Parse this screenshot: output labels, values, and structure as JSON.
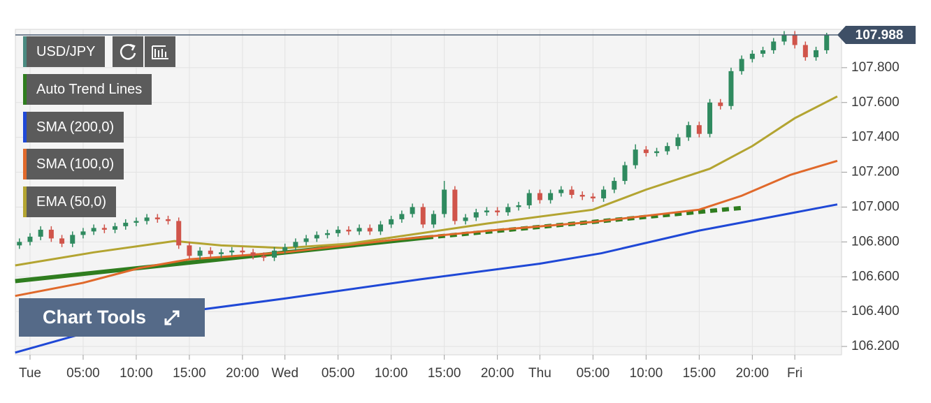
{
  "chart_data": {
    "type": "candlestick",
    "symbol": "USD/JPY",
    "up_color": "#2f8a5f",
    "down_color": "#d0544a",
    "x": [
      -1,
      0,
      1,
      2,
      3,
      4,
      5,
      6,
      7,
      8,
      9,
      10,
      11,
      12,
      13,
      14,
      15,
      16,
      17,
      18,
      19,
      20,
      21,
      22,
      23,
      24,
      25,
      26,
      27,
      28,
      29,
      30,
      31,
      32,
      33,
      34,
      35,
      36,
      37,
      38,
      39,
      40,
      41,
      42,
      43,
      44,
      45,
      46,
      47,
      48,
      49,
      50,
      51,
      52,
      53,
      54,
      55,
      56,
      57,
      58,
      59,
      60,
      61,
      62,
      63,
      64,
      65,
      66,
      67,
      68,
      69,
      70,
      71,
      72,
      73,
      74,
      75
    ],
    "open": [
      106.78,
      106.8,
      106.83,
      106.87,
      106.82,
      106.79,
      106.84,
      106.86,
      106.88,
      106.87,
      106.89,
      106.91,
      106.92,
      106.94,
      106.93,
      106.92,
      106.78,
      106.72,
      106.75,
      106.73,
      106.74,
      106.75,
      106.74,
      106.72,
      106.71,
      106.75,
      106.77,
      106.8,
      106.82,
      106.84,
      106.85,
      106.87,
      106.86,
      106.88,
      106.86,
      106.9,
      106.93,
      106.96,
      107.0,
      106.9,
      106.96,
      107.1,
      106.92,
      106.94,
      106.97,
      106.98,
      106.97,
      107.0,
      107.01,
      107.08,
      107.04,
      107.08,
      107.1,
      107.07,
      107.06,
      107.05,
      107.1,
      107.15,
      107.24,
      107.33,
      107.31,
      107.32,
      107.35,
      107.4,
      107.47,
      107.42,
      107.6,
      107.58,
      107.78,
      107.85,
      107.88,
      107.9,
      107.95,
      107.99,
      107.93,
      107.86,
      107.9
    ],
    "high": [
      106.82,
      106.85,
      106.89,
      106.89,
      106.84,
      106.86,
      106.88,
      106.9,
      106.9,
      106.91,
      106.93,
      106.94,
      106.96,
      106.96,
      106.95,
      106.94,
      106.8,
      106.77,
      106.77,
      106.76,
      106.77,
      106.77,
      106.76,
      106.74,
      106.77,
      106.79,
      106.82,
      106.84,
      106.86,
      106.87,
      106.89,
      106.89,
      106.9,
      106.9,
      106.92,
      106.95,
      106.98,
      107.02,
      107.02,
      106.98,
      107.15,
      107.12,
      106.96,
      106.99,
      107.0,
      107.0,
      107.02,
      107.03,
      107.1,
      107.1,
      107.1,
      107.12,
      107.12,
      107.09,
      107.08,
      107.12,
      107.17,
      107.26,
      107.36,
      107.35,
      107.34,
      107.37,
      107.42,
      107.49,
      107.49,
      107.62,
      107.62,
      107.8,
      107.87,
      107.9,
      107.92,
      107.97,
      108.01,
      108.01,
      107.95,
      107.92,
      108.0
    ],
    "low": [
      106.76,
      106.78,
      106.81,
      106.8,
      106.77,
      106.77,
      106.82,
      106.84,
      106.85,
      106.85,
      106.87,
      106.89,
      106.9,
      106.91,
      106.9,
      106.76,
      106.7,
      106.7,
      106.71,
      106.71,
      106.72,
      106.72,
      106.7,
      106.69,
      106.69,
      106.73,
      106.75,
      106.78,
      106.8,
      106.82,
      106.83,
      106.84,
      106.84,
      106.84,
      106.84,
      106.88,
      106.91,
      106.94,
      106.88,
      106.88,
      106.94,
      106.9,
      106.9,
      106.92,
      106.95,
      106.95,
      106.95,
      106.98,
      106.99,
      107.02,
      107.02,
      107.06,
      107.05,
      107.04,
      107.03,
      107.03,
      107.08,
      107.13,
      107.22,
      107.29,
      107.29,
      107.3,
      107.33,
      107.38,
      107.4,
      107.4,
      107.56,
      107.56,
      107.76,
      107.83,
      107.86,
      107.88,
      107.93,
      107.91,
      107.84,
      107.84,
      107.88
    ],
    "close": [
      106.8,
      106.83,
      106.87,
      106.82,
      106.79,
      106.84,
      106.86,
      106.88,
      106.87,
      106.89,
      106.91,
      106.92,
      106.94,
      106.93,
      106.92,
      106.78,
      106.72,
      106.75,
      106.73,
      106.74,
      106.75,
      106.74,
      106.72,
      106.71,
      106.75,
      106.77,
      106.8,
      106.82,
      106.84,
      106.85,
      106.87,
      106.86,
      106.88,
      106.86,
      106.9,
      106.93,
      106.96,
      107.0,
      106.9,
      106.96,
      107.1,
      106.92,
      106.94,
      106.97,
      106.98,
      106.97,
      107.0,
      107.01,
      107.08,
      107.04,
      107.08,
      107.1,
      107.07,
      107.06,
      107.05,
      107.1,
      107.15,
      107.24,
      107.33,
      107.31,
      107.32,
      107.35,
      107.4,
      107.47,
      107.42,
      107.6,
      107.58,
      107.78,
      107.85,
      107.88,
      107.9,
      107.95,
      107.99,
      107.93,
      107.86,
      107.9,
      107.988
    ],
    "last_price": 107.988,
    "series": [
      {
        "name": "Auto Trend Lines",
        "color": "#2f7d1f",
        "width": 6,
        "x": [
          -1.4,
          37.3
        ],
        "values": [
          106.575,
          106.825
        ],
        "projection": {
          "x": [
            37.3,
            67
          ],
          "values": [
            106.825,
            106.995
          ]
        }
      },
      {
        "name": "SMA (200,0)",
        "color": "#1f48d6",
        "width": 3,
        "x": [
          -1.4,
          10.3,
          24,
          36.7,
          48,
          53.8,
          63,
          76
        ],
        "values": [
          106.165,
          106.365,
          106.475,
          106.585,
          106.675,
          106.735,
          106.865,
          107.015
        ]
      },
      {
        "name": "SMA (100,0)",
        "color": "#e0692b",
        "width": 3,
        "x": [
          -1.4,
          5,
          10.3,
          15,
          24,
          34,
          43.3,
          53.1,
          63,
          67,
          71.6,
          76
        ],
        "values": [
          106.49,
          106.565,
          106.65,
          106.7,
          106.74,
          106.81,
          106.865,
          106.915,
          106.985,
          107.065,
          107.185,
          107.265
        ]
      },
      {
        "name": "EMA (50,0)",
        "color": "#b3a431",
        "width": 3,
        "x": [
          -1.4,
          6,
          13.6,
          18,
          24,
          30,
          34,
          43,
          53,
          58,
          64,
          68,
          72,
          76
        ],
        "values": [
          106.665,
          106.74,
          106.805,
          106.78,
          106.765,
          106.79,
          106.825,
          106.905,
          106.985,
          107.1,
          107.22,
          107.35,
          107.51,
          107.635
        ]
      }
    ],
    "xlim": [
      -1.38,
      76.4
    ],
    "xticks": [
      {
        "value": 0,
        "label": "Tue"
      },
      {
        "value": 5,
        "label": "05:00"
      },
      {
        "value": 10,
        "label": "10:00"
      },
      {
        "value": 15,
        "label": "15:00"
      },
      {
        "value": 20,
        "label": "20:00"
      },
      {
        "value": 24,
        "label": "Wed"
      },
      {
        "value": 29,
        "label": "05:00"
      },
      {
        "value": 34,
        "label": "10:00"
      },
      {
        "value": 39,
        "label": "15:00"
      },
      {
        "value": 44,
        "label": "20:00"
      },
      {
        "value": 48,
        "label": "Thu"
      },
      {
        "value": 53,
        "label": "05:00"
      },
      {
        "value": 58,
        "label": "10:00"
      },
      {
        "value": 63,
        "label": "15:00"
      },
      {
        "value": 68,
        "label": "20:00"
      },
      {
        "value": 72,
        "label": "Fri"
      }
    ],
    "ylim": [
      106.152,
      108.02
    ],
    "yticks": [
      {
        "value": 106.2,
        "label": "106.200"
      },
      {
        "value": 106.4,
        "label": "106.400"
      },
      {
        "value": 106.6,
        "label": "106.600"
      },
      {
        "value": 106.8,
        "label": "106.800"
      },
      {
        "value": 107.0,
        "label": "107.000"
      },
      {
        "value": 107.2,
        "label": "107.200"
      },
      {
        "value": 107.4,
        "label": "107.400"
      },
      {
        "value": 107.6,
        "label": "107.600"
      },
      {
        "value": 107.8,
        "label": "107.800"
      }
    ],
    "grid": true,
    "tools_label": "Chart Tools"
  }
}
